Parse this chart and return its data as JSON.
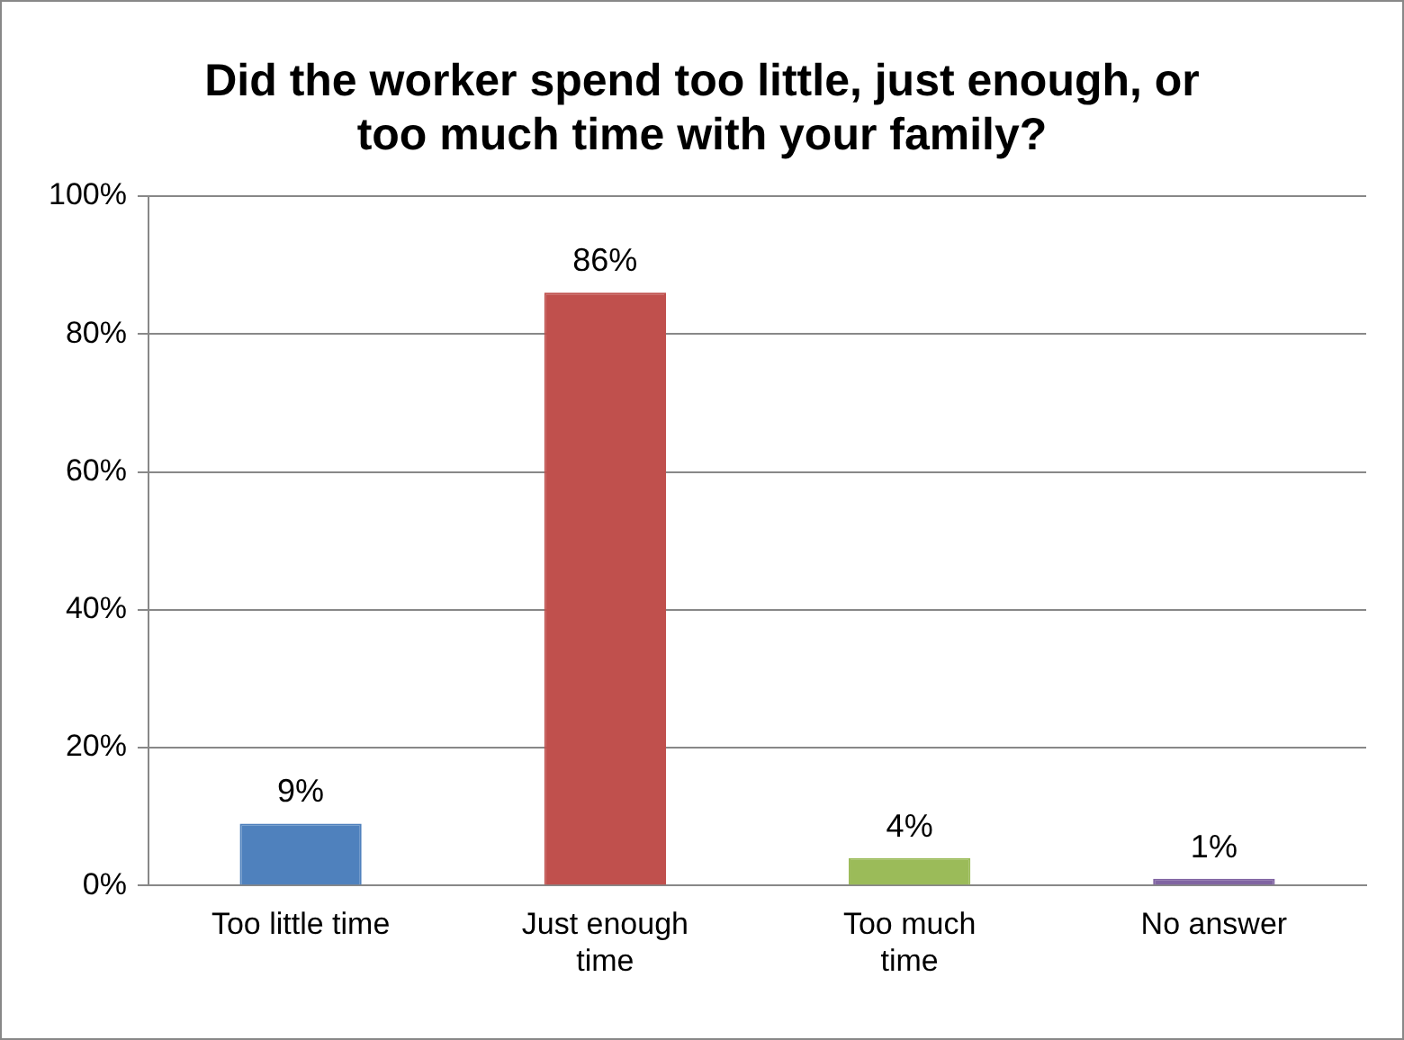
{
  "chart_data": {
    "type": "bar",
    "title": "Did the worker spend too little, just enough, or too much time with your family?",
    "categories": [
      "Too little time",
      "Just enough time",
      "Too much time",
      "No answer"
    ],
    "values": [
      9,
      86,
      4,
      1
    ],
    "colors": [
      "#4f81bd",
      "#c0504d",
      "#9bbb59",
      "#8064a2"
    ],
    "value_labels": [
      "9%",
      "86%",
      "4%",
      "1%"
    ],
    "ylim": [
      0,
      100
    ],
    "yticks": [
      {
        "value": 0,
        "label": "0%"
      },
      {
        "value": 20,
        "label": "20%"
      },
      {
        "value": 40,
        "label": "40%"
      },
      {
        "value": 60,
        "label": "60%"
      },
      {
        "value": 80,
        "label": "80%"
      },
      {
        "value": 100,
        "label": "100%"
      }
    ],
    "grid": "y",
    "legend": false
  }
}
